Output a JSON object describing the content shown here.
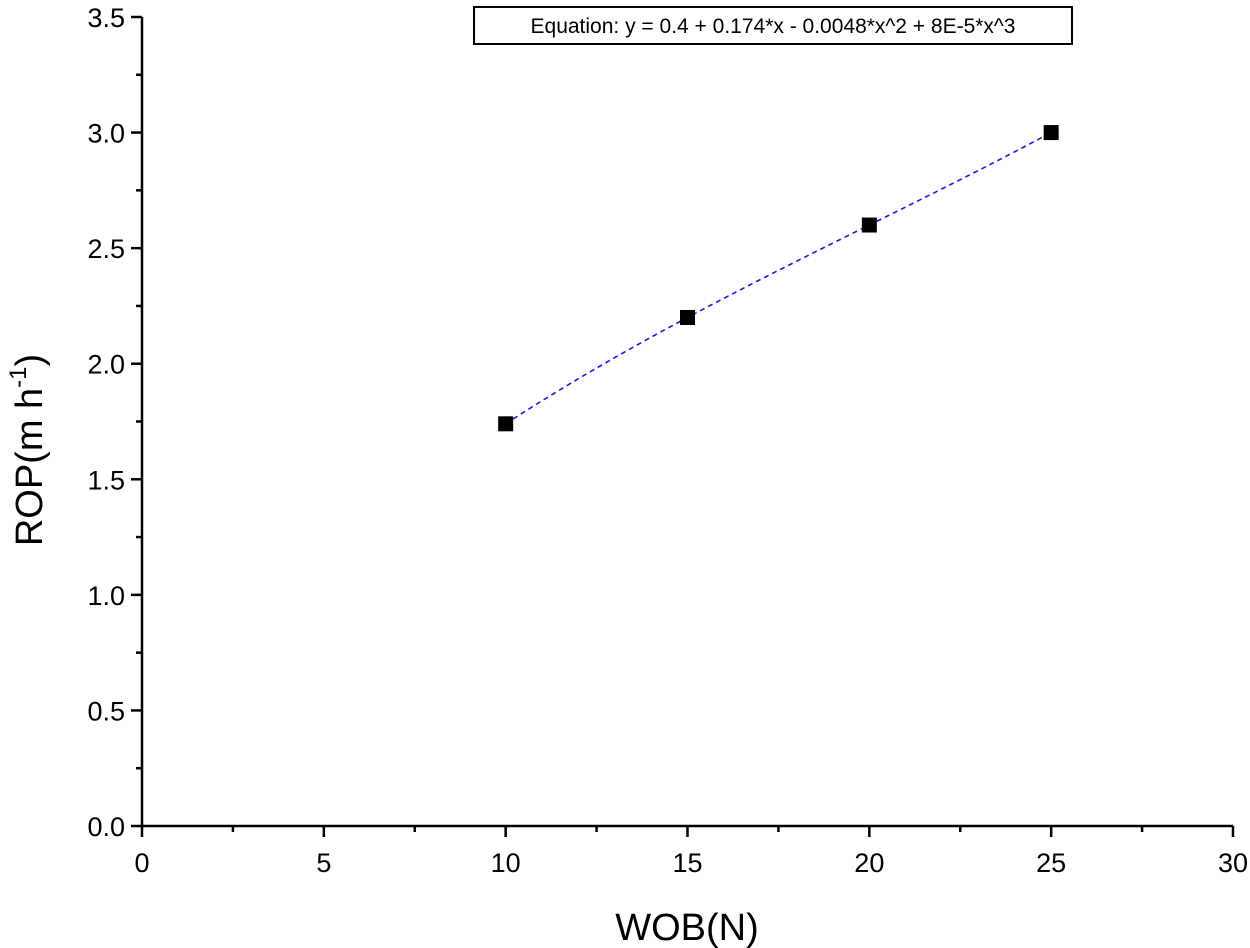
{
  "chart_data": {
    "type": "scatter",
    "xlabel": "WOB(N)",
    "ylabel": {
      "main": "ROP(m h",
      "sup": "-1",
      "close": ")"
    },
    "xlim": [
      0,
      30
    ],
    "ylim": [
      0,
      3.5
    ],
    "x_ticks": [
      "0",
      "5",
      "10",
      "15",
      "20",
      "25",
      "30"
    ],
    "y_ticks": [
      "0.0",
      "0.5",
      "1.0",
      "1.5",
      "2.0",
      "2.5",
      "3.0",
      "3.5"
    ],
    "grid": false,
    "series": [
      {
        "marker": "square",
        "color": "#000000",
        "points": [
          {
            "x": 10,
            "y": 1.74
          },
          {
            "x": 15,
            "y": 2.2
          },
          {
            "x": 20,
            "y": 2.6
          },
          {
            "x": 25,
            "y": 3.0
          }
        ]
      }
    ],
    "fit": {
      "color": "#1a1adb",
      "style": "dashed",
      "coefficients": [
        0.4,
        0.174,
        -0.0048,
        8e-05
      ],
      "x_range": [
        10,
        25
      ]
    },
    "annotation": {
      "text": "Equation: y = 0.4 + 0.174*x - 0.0048*x^2 + 8E-5*x^3",
      "position": "top-center"
    }
  }
}
